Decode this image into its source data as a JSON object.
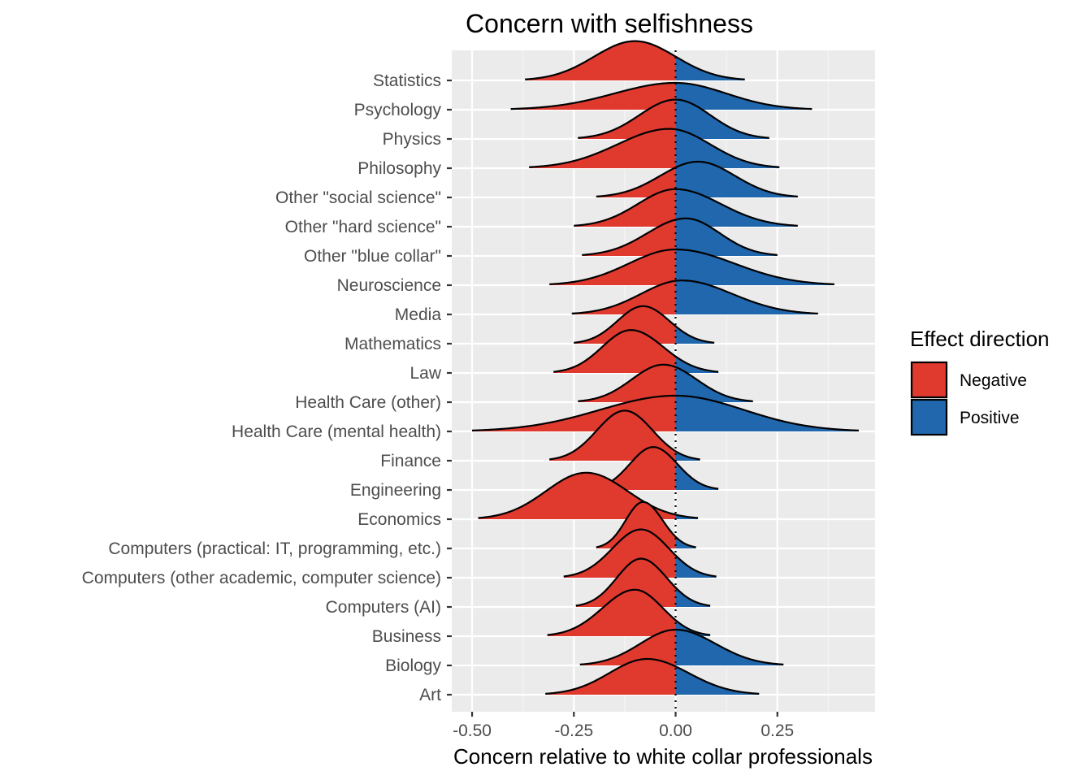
{
  "chart_data": {
    "type": "ridgeline",
    "title": "Concern with selfishness",
    "xlabel": "Concern relative to white collar professionals",
    "ylabel": "",
    "xlim": [
      -0.55,
      0.49
    ],
    "x_ticks": [
      "-0.50",
      "-0.25",
      "0.00",
      "0.25"
    ],
    "reference_line": {
      "x": 0,
      "style": "dotted"
    },
    "grid": true,
    "legend": {
      "title": "Effect direction",
      "position": "right",
      "entries": [
        {
          "label": "Negative",
          "color": "#E03A2F"
        },
        {
          "label": "Positive",
          "color": "#2067AD"
        }
      ]
    },
    "categories": [
      "Art",
      "Biology",
      "Business",
      "Computers (AI)",
      "Computers (other academic, computer science)",
      "Computers (practical: IT, programming, etc.)",
      "Economics",
      "Engineering",
      "Finance",
      "Health Care (mental health)",
      "Health Care (other)",
      "Law",
      "Mathematics",
      "Media",
      "Neuroscience",
      "Other \"blue collar\"",
      "Other \"hard science\"",
      "Other \"social science\"",
      "Philosophy",
      "Physics",
      "Psychology",
      "Statistics"
    ],
    "distributions": [
      {
        "category": "Art",
        "min": -0.32,
        "max": 0.205,
        "mode": -0.07,
        "height": 1.0
      },
      {
        "category": "Biology",
        "min": -0.235,
        "max": 0.265,
        "mode": 0.0,
        "height": 1.0
      },
      {
        "category": "Business",
        "min": -0.315,
        "max": 0.085,
        "mode": -0.1,
        "height": 1.3
      },
      {
        "category": "Computers (AI)",
        "min": -0.245,
        "max": 0.085,
        "mode": -0.085,
        "height": 1.35
      },
      {
        "category": "Computers (other academic, computer science)",
        "min": -0.275,
        "max": 0.1,
        "mode": -0.085,
        "height": 1.35
      },
      {
        "category": "Computers (practical: IT, programming, etc.)",
        "min": -0.195,
        "max": 0.05,
        "mode": -0.08,
        "height": 1.3
      },
      {
        "category": "Economics",
        "min": -0.485,
        "max": 0.055,
        "mode": -0.22,
        "height": 1.3
      },
      {
        "category": "Engineering",
        "min": -0.21,
        "max": 0.105,
        "mode": -0.055,
        "height": 1.2
      },
      {
        "category": "Finance",
        "min": -0.31,
        "max": 0.06,
        "mode": -0.125,
        "height": 1.4
      },
      {
        "category": "Health Care (mental health)",
        "min": -0.5,
        "max": 0.45,
        "mode": 0.0,
        "height": 1.0
      },
      {
        "category": "Health Care (other)",
        "min": -0.24,
        "max": 0.19,
        "mode": -0.03,
        "height": 1.05
      },
      {
        "category": "Law",
        "min": -0.3,
        "max": 0.105,
        "mode": -0.11,
        "height": 1.2
      },
      {
        "category": "Mathematics",
        "min": -0.25,
        "max": 0.095,
        "mode": -0.08,
        "height": 1.05
      },
      {
        "category": "Media",
        "min": -0.255,
        "max": 0.35,
        "mode": 0.015,
        "height": 0.95
      },
      {
        "category": "Neuroscience",
        "min": -0.31,
        "max": 0.39,
        "mode": 0.0,
        "height": 1.0
      },
      {
        "category": "Other \"blue collar\"",
        "min": -0.23,
        "max": 0.25,
        "mode": 0.025,
        "height": 1.05
      },
      {
        "category": "Other \"hard science\"",
        "min": -0.25,
        "max": 0.3,
        "mode": 0.0,
        "height": 1.05
      },
      {
        "category": "Other \"social science\"",
        "min": -0.195,
        "max": 0.3,
        "mode": 0.055,
        "height": 1.0
      },
      {
        "category": "Philosophy",
        "min": -0.36,
        "max": 0.255,
        "mode": -0.015,
        "height": 1.1
      },
      {
        "category": "Physics",
        "min": -0.24,
        "max": 0.23,
        "mode": 0.0,
        "height": 1.1
      },
      {
        "category": "Psychology",
        "min": -0.405,
        "max": 0.335,
        "mode": 0.0,
        "height": 0.75
      },
      {
        "category": "Statistics",
        "min": -0.37,
        "max": 0.17,
        "mode": -0.1,
        "height": 1.1
      }
    ]
  }
}
